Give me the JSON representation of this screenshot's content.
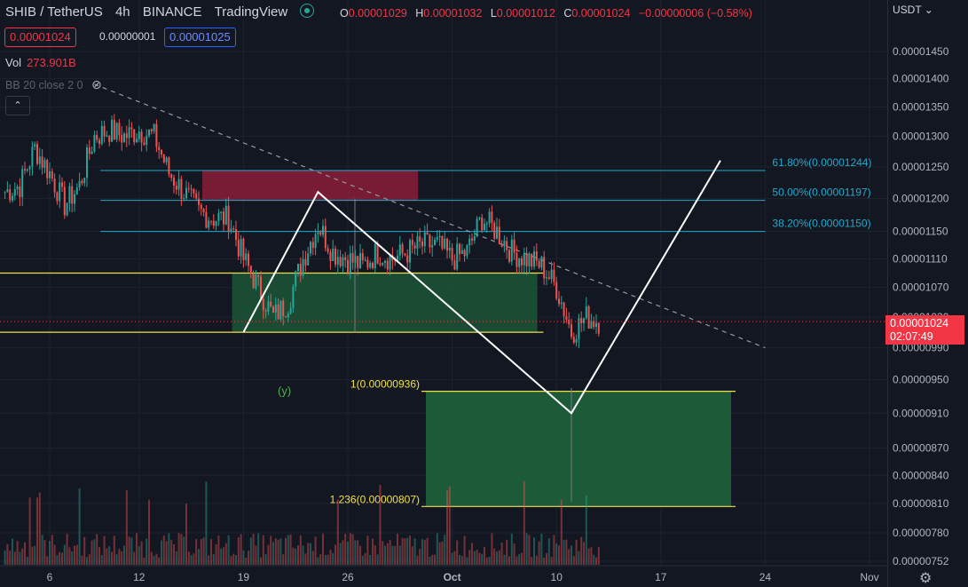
{
  "header": {
    "symbol": "SHIB / TetherUS",
    "interval": "4h",
    "exchange": "BINANCE",
    "source": "TradingView",
    "ohlc": {
      "o_label": "O",
      "o": "0.00001029",
      "h_label": "H",
      "h": "0.00001032",
      "l_label": "L",
      "l": "0.00001012",
      "c_label": "C",
      "c": "0.00001024",
      "change": "−0.00000006 (−0.58%)"
    }
  },
  "trade": {
    "sell": "0.00001024",
    "spread": "0.00000001",
    "buy": "0.00001025"
  },
  "volume": {
    "label": "Vol",
    "value": "273.901B"
  },
  "indicator": {
    "label": "BB 20 close 2 0"
  },
  "axis": {
    "currency": "USDT",
    "last_price": "0.00001024",
    "countdown": "02:07:49"
  },
  "colors": {
    "background": "#131722",
    "up": "#26a69a",
    "down": "#ef5350",
    "fib": "#22aacc",
    "yellow": "#f0e04a",
    "drawing": "#ffffff",
    "supply_zone": "#8b1d3a",
    "demand_zone": "#1e5e3a"
  },
  "chart_data": {
    "type": "candlestick",
    "ylim": [
      7.4e-06,
      1.5e-05
    ],
    "y_ticks": [
      "0.00001450",
      "0.00001400",
      "0.00001350",
      "0.00001300",
      "0.00001250",
      "0.00001200",
      "0.00001150",
      "0.00001110",
      "0.00001070",
      "0.00001030",
      "0.00000990",
      "0.00000950",
      "0.00000910",
      "0.00000870",
      "0.00000840",
      "0.00000810",
      "0.00000780",
      "0.00000752"
    ],
    "x_ticks": [
      "6",
      "12",
      "19",
      "26",
      "Oct",
      "10",
      "17",
      "24",
      "Nov"
    ],
    "price_path": [
      [
        "Sep 3",
        1.21e-05
      ],
      [
        "Sep 4",
        1.22e-05
      ],
      [
        "Sep 5",
        1.28e-05
      ],
      [
        "Sep 6",
        1.24e-05
      ],
      [
        "Sep 7",
        1.19e-05
      ],
      [
        "Sep 8",
        1.22e-05
      ],
      [
        "Sep 9",
        1.3e-05
      ],
      [
        "Sep 10",
        1.31e-05
      ],
      [
        "Sep 11",
        1.3e-05
      ],
      [
        "Sep 12",
        1.31e-05
      ],
      [
        "Sep 13",
        1.3e-05
      ],
      [
        "Sep 14",
        1.24e-05
      ],
      [
        "Sep 15",
        1.21e-05
      ],
      [
        "Sep 16",
        1.18e-05
      ],
      [
        "Sep 17",
        1.17e-05
      ],
      [
        "Sep 18",
        1.17e-05
      ],
      [
        "Sep 19",
        1.11e-05
      ],
      [
        "Sep 20",
        1.07e-05
      ],
      [
        "Sep 21",
        1.03e-05
      ],
      [
        "Sep 22",
        1.05e-05
      ],
      [
        "Sep 23",
        1.11e-05
      ],
      [
        "Sep 24",
        1.16e-05
      ],
      [
        "Sep 25",
        1.12e-05
      ],
      [
        "Sep 26",
        1.11e-05
      ],
      [
        "Sep 27",
        1.1e-05
      ],
      [
        "Sep 28",
        1.12e-05
      ],
      [
        "Sep 29",
        1.11e-05
      ],
      [
        "Sep 30",
        1.12e-05
      ],
      [
        "Oct 1",
        1.13e-05
      ],
      [
        "Oct 2",
        1.13e-05
      ],
      [
        "Oct 3",
        1.11e-05
      ],
      [
        "Oct 4",
        1.12e-05
      ],
      [
        "Oct 5",
        1.17e-05
      ],
      [
        "Oct 6",
        1.15e-05
      ],
      [
        "Oct 7",
        1.12e-05
      ],
      [
        "Oct 8",
        1.11e-05
      ],
      [
        "Oct 9",
        1.1e-05
      ],
      [
        "Oct 10",
        1.07e-05
      ],
      [
        "Oct 11",
        1.01e-05
      ],
      [
        "Oct 12",
        1.03e-05
      ],
      [
        "Oct 13",
        1.024e-05
      ]
    ],
    "fib_levels": [
      {
        "label": "61.80%(0.00001244)",
        "price": 1.244e-05
      },
      {
        "label": "50.00%(0.00001197)",
        "price": 1.197e-05
      },
      {
        "label": "38.20%(0.00001150)",
        "price": 1.15e-05
      }
    ],
    "extension_levels": [
      {
        "label": "1(0.00000936)",
        "price": 9.36e-06
      },
      {
        "label": "1.236(0.00000807)",
        "price": 8.07e-06
      }
    ],
    "wave_label": "(y)",
    "horizontal_levels": [
      1.09e-05,
      1.01e-05
    ],
    "zones": [
      {
        "name": "supply",
        "top": 1.244e-05,
        "bottom": 1.197e-05
      },
      {
        "name": "demand-upper",
        "top": 1.09e-05,
        "bottom": 1.01e-05
      },
      {
        "name": "demand-lower",
        "top": 9.36e-06,
        "bottom": 8.07e-06
      }
    ],
    "trendline": {
      "from": [
        "Sep 9",
        1.39e-05
      ],
      "to": [
        "Oct 24",
        9.9e-06
      ]
    },
    "projection_path": [
      [
        "Sep 19",
        1.01e-05
      ],
      [
        "Sep 24",
        1.21e-05
      ],
      [
        "Oct 11",
        9.1e-06
      ],
      [
        "Oct 21",
        1.26e-05
      ]
    ]
  }
}
